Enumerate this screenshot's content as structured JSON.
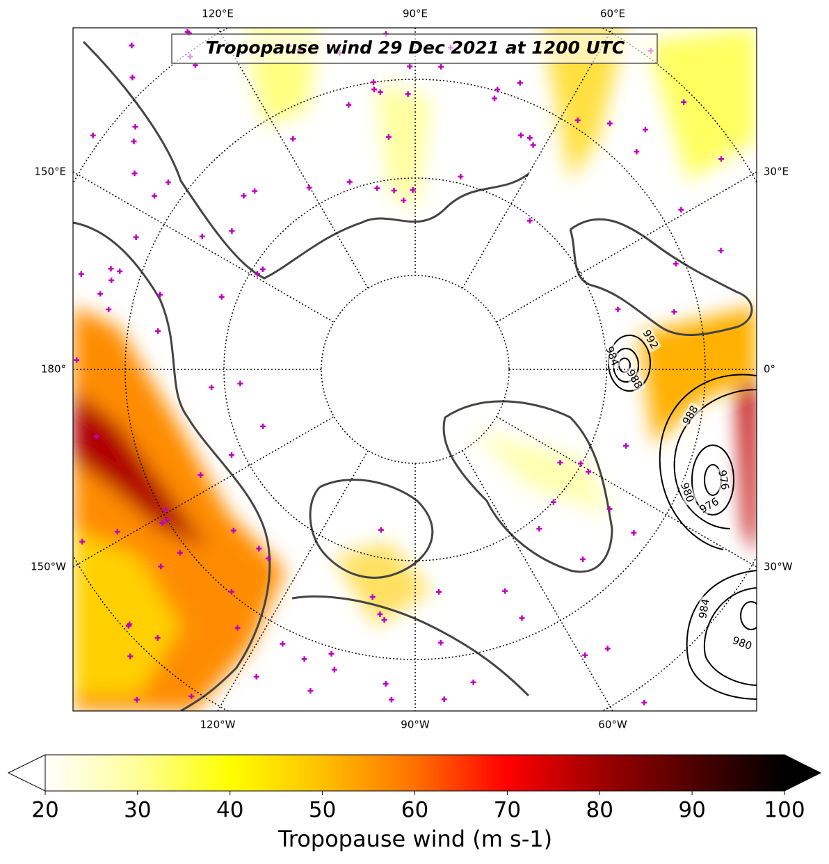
{
  "title": "Tropopause wind 29 Dec 2021 at 1200 UTC",
  "longitude_labels": {
    "top": [
      "120°E",
      "90°E",
      "60°E"
    ],
    "left": [
      "150°E",
      "180°",
      "150°W"
    ],
    "right": [
      "30°E",
      "0°",
      "30°W"
    ],
    "bottom": [
      "120°W",
      "90°W",
      "60°W"
    ]
  },
  "contour_labels": [
    "992",
    "984",
    "988",
    "988",
    "976",
    "980",
    "976",
    "984",
    "980"
  ],
  "colorbar": {
    "label": "Tropopause wind (m s-1)",
    "range": [
      20,
      100
    ],
    "ticks": [
      20,
      30,
      40,
      50,
      60,
      70,
      80,
      90,
      100
    ],
    "colors": [
      "#ffffff",
      "#ffff99",
      "#ffff00",
      "#ffc000",
      "#ff7000",
      "#ff0000",
      "#a00000",
      "#500000",
      "#000000"
    ]
  }
}
